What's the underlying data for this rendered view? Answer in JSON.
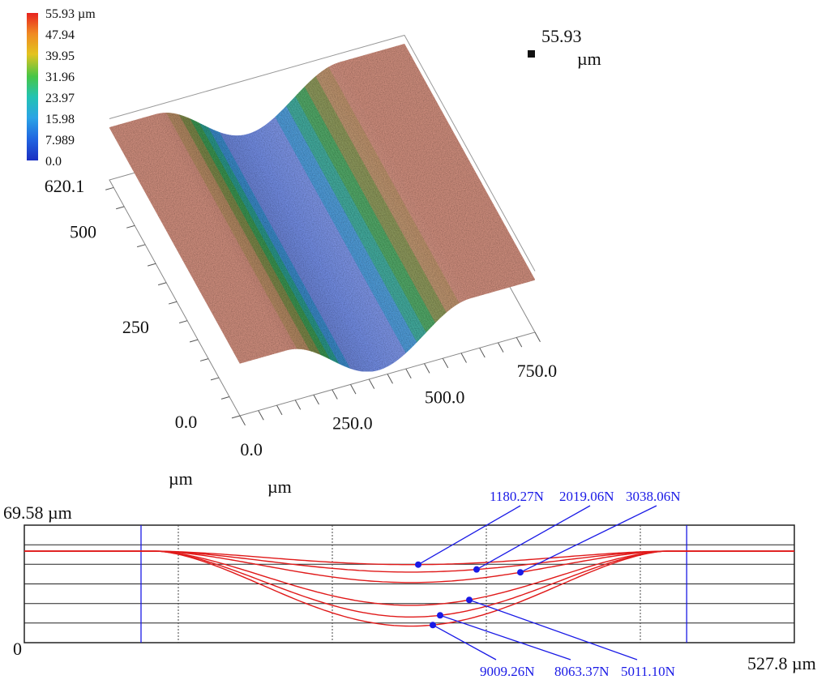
{
  "colors": {
    "surface_base": "#c98778",
    "groove_wall": "#3f9e66",
    "groove_bottom": "#6a86dd",
    "profile_line": "#e01a1a",
    "marker": "#1a1ae6",
    "grid": "#222222"
  },
  "chart_data": [
    {
      "type": "surface-3d",
      "colorbar": {
        "labels": [
          "55.93 µm",
          "47.94",
          "39.95",
          "31.96",
          "23.97",
          "15.98",
          "7.989",
          "0.0"
        ],
        "values": [
          55.93,
          47.94,
          39.95,
          31.96,
          23.97,
          15.98,
          7.989,
          0.0
        ],
        "colors": [
          "#e8231f",
          "#f0a020",
          "#b8b820",
          "#43c343",
          "#20c0b0",
          "#2aa4e6",
          "#2060e0",
          "#1030c0"
        ]
      },
      "z_max_label": "55.93",
      "z_unit": "µm",
      "x_axis": {
        "ticks": [
          "0.0",
          "250.0",
          "500.0",
          "750.0"
        ],
        "values": [
          0,
          250,
          500,
          750
        ],
        "unit": "µm",
        "range": [
          0,
          800
        ]
      },
      "y_axis": {
        "ticks": [
          "0.0",
          "250",
          "500",
          "620.1"
        ],
        "values": [
          0,
          250,
          500,
          620.1
        ],
        "unit": "µm",
        "range": [
          0,
          620.1
        ]
      },
      "groove": {
        "center_x": 375,
        "half_width": 250,
        "plateau_z": 47.9,
        "min_z": 6.0
      }
    },
    {
      "type": "line",
      "y_top_label": "69.58 µm",
      "y_bottom_label": "0",
      "x_end_label": "527.8 µm",
      "y_range": [
        0,
        69.58
      ],
      "x_range": [
        0,
        527.8
      ],
      "baseline_y": 54.2,
      "groove_start_x": 90,
      "groove_end_x": 440,
      "vertical_markers_x": [
        80,
        454
      ],
      "series": [
        {
          "name": "1180.27N",
          "min_y": 46.2,
          "marker_x": 270
        },
        {
          "name": "2019.06N",
          "min_y": 41.8,
          "marker_x": 310
        },
        {
          "name": "3038.06N",
          "min_y": 35.6,
          "marker_x": 340
        },
        {
          "name": "5011.10N",
          "min_y": 22.1,
          "marker_x": 305
        },
        {
          "name": "8063.37N",
          "min_y": 15.2,
          "marker_x": 285
        },
        {
          "name": "9009.26N",
          "min_y": 9.8,
          "marker_x": 280
        }
      ]
    }
  ]
}
